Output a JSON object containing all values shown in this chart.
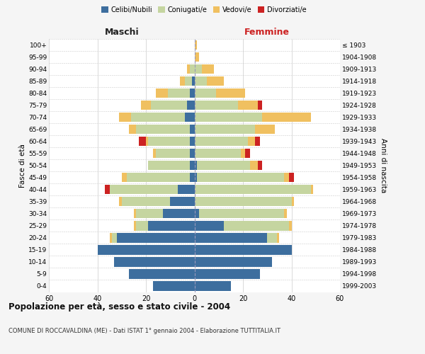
{
  "age_groups": [
    "0-4",
    "5-9",
    "10-14",
    "15-19",
    "20-24",
    "25-29",
    "30-34",
    "35-39",
    "40-44",
    "45-49",
    "50-54",
    "55-59",
    "60-64",
    "65-69",
    "70-74",
    "75-79",
    "80-84",
    "85-89",
    "90-94",
    "95-99",
    "100+"
  ],
  "birth_years": [
    "1999-2003",
    "1994-1998",
    "1989-1993",
    "1984-1988",
    "1979-1983",
    "1974-1978",
    "1969-1973",
    "1964-1968",
    "1959-1963",
    "1954-1958",
    "1949-1953",
    "1944-1948",
    "1939-1943",
    "1934-1938",
    "1929-1933",
    "1924-1928",
    "1919-1923",
    "1914-1918",
    "1909-1913",
    "1904-1908",
    "≤ 1903"
  ],
  "colors": {
    "celibe": "#3d6e9e",
    "coniugato": "#c5d5a0",
    "vedovo": "#f0c060",
    "divorziato": "#cc2222"
  },
  "maschi": {
    "celibe": [
      17,
      27,
      33,
      40,
      32,
      19,
      13,
      10,
      7,
      2,
      2,
      2,
      2,
      2,
      4,
      3,
      2,
      1,
      0,
      0,
      0
    ],
    "coniugato": [
      0,
      0,
      0,
      0,
      2,
      5,
      11,
      20,
      28,
      26,
      17,
      14,
      17,
      22,
      22,
      15,
      9,
      3,
      2,
      0,
      0
    ],
    "vedovo": [
      0,
      0,
      0,
      0,
      1,
      1,
      1,
      1,
      0,
      2,
      0,
      1,
      1,
      3,
      5,
      4,
      5,
      2,
      1,
      0,
      0
    ],
    "divorziato": [
      0,
      0,
      0,
      0,
      0,
      0,
      0,
      0,
      2,
      0,
      0,
      0,
      3,
      0,
      0,
      0,
      0,
      0,
      0,
      0,
      0
    ]
  },
  "femmine": {
    "nubile": [
      15,
      27,
      32,
      40,
      30,
      12,
      2,
      0,
      0,
      1,
      1,
      0,
      0,
      0,
      0,
      0,
      0,
      0,
      0,
      0,
      0
    ],
    "coniugata": [
      0,
      0,
      0,
      0,
      4,
      27,
      35,
      40,
      48,
      36,
      22,
      19,
      22,
      25,
      28,
      18,
      9,
      5,
      3,
      0,
      0
    ],
    "vedova": [
      0,
      0,
      0,
      0,
      1,
      1,
      1,
      1,
      1,
      2,
      3,
      2,
      3,
      8,
      20,
      8,
      12,
      7,
      5,
      2,
      1
    ],
    "divorziata": [
      0,
      0,
      0,
      0,
      0,
      0,
      0,
      0,
      0,
      2,
      2,
      2,
      2,
      0,
      0,
      2,
      0,
      0,
      0,
      0,
      0
    ]
  },
  "xlim": 60,
  "title": "Popolazione per età, sesso e stato civile - 2004",
  "subtitle": "COMUNE DI ROCCAVALDINA (ME) - Dati ISTAT 1° gennaio 2004 - Elaborazione TUTTITALIA.IT",
  "ylabel_left": "Fasce di età",
  "ylabel_right": "Anni di nascita",
  "xlabel_left": "Maschi",
  "xlabel_right": "Femmine",
  "bg_color": "#f5f5f5",
  "plot_bg": "#ffffff",
  "grid_color": "#cccccc"
}
